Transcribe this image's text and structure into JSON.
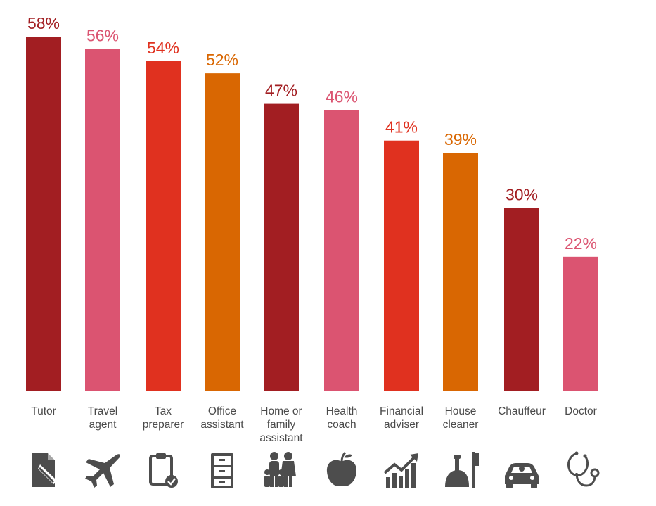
{
  "chart_data": {
    "type": "bar",
    "categories": [
      "Tutor",
      "Travel\nagent",
      "Tax\npreparer",
      "Office\nassistant",
      "Home or\nfamily\nassistant",
      "Health\ncoach",
      "Financial\nadviser",
      "House\ncleaner",
      "Chauffeur",
      "Doctor"
    ],
    "values": [
      58,
      56,
      54,
      52,
      47,
      46,
      41,
      39,
      30,
      22
    ],
    "value_labels": [
      "58%",
      "56%",
      "54%",
      "52%",
      "47%",
      "46%",
      "41%",
      "39%",
      "30%",
      "22%"
    ],
    "colors": [
      "#a21e22",
      "#db5471",
      "#e0311f",
      "#d96702",
      "#a21e22",
      "#db5471",
      "#e0311f",
      "#d96702",
      "#a21e22",
      "#db5471"
    ],
    "icons": [
      "document-pen-icon",
      "airplane-icon",
      "clipboard-check-icon",
      "filing-cabinet-icon",
      "family-icon",
      "apple-icon",
      "growth-chart-icon",
      "dustpan-brush-icon",
      "car-chauffeur-icon",
      "stethoscope-icon"
    ],
    "ylim": [
      0,
      58
    ],
    "grid": false,
    "legend": "none",
    "icon_color": "#4d4d4d"
  }
}
